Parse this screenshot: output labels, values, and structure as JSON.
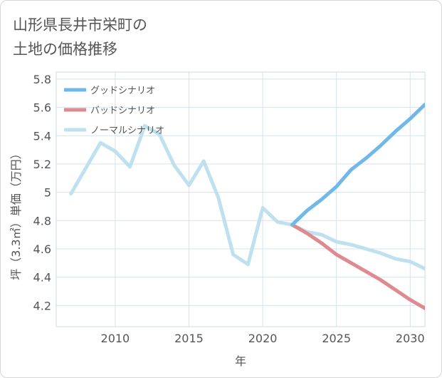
{
  "chart_data": {
    "type": "line",
    "title_lines": [
      "山形県長井市栄町の",
      "土地の価格推移"
    ],
    "xlabel": "年",
    "ylabel": "坪（3.3㎡）単価（万円）",
    "xlim": [
      2006,
      2031
    ],
    "ylim": [
      4.05,
      5.85
    ],
    "x_ticks": [
      2010,
      2015,
      2020,
      2025,
      2030
    ],
    "x_tick_labels": [
      "2010",
      "2015",
      "2020",
      "2025",
      "2030"
    ],
    "y_ticks": [
      4.2,
      4.4,
      4.6,
      4.8,
      5.0,
      5.2,
      5.4,
      5.6,
      5.8
    ],
    "y_tick_labels": [
      "4.2",
      "4.4",
      "4.6",
      "4.8",
      "5",
      "5.2",
      "5.4",
      "5.6",
      "5.8"
    ],
    "grid": true,
    "legend_position": "top-left",
    "series": [
      {
        "name": "グッドシナリオ",
        "color": "#6fb8e8",
        "x": [
          2022,
          2023,
          2024,
          2025,
          2026,
          2027,
          2028,
          2029,
          2030,
          2031
        ],
        "y": [
          4.77,
          4.87,
          4.95,
          5.04,
          5.16,
          5.24,
          5.33,
          5.43,
          5.52,
          5.62
        ]
      },
      {
        "name": "バッドシナリオ",
        "color": "#de8a90",
        "x": [
          2022,
          2023,
          2024,
          2025,
          2026,
          2027,
          2028,
          2029,
          2030,
          2031
        ],
        "y": [
          4.77,
          4.71,
          4.64,
          4.56,
          4.5,
          4.44,
          4.38,
          4.31,
          4.24,
          4.18
        ]
      },
      {
        "name": "ノーマルシナリオ",
        "color": "#bfe0ee",
        "x": [
          2007,
          2008,
          2009,
          2010,
          2011,
          2012,
          2013,
          2014,
          2015,
          2016,
          2017,
          2018,
          2019,
          2020,
          2021,
          2022,
          2023,
          2024,
          2025,
          2026,
          2027,
          2028,
          2029,
          2030,
          2031
        ],
        "y": [
          4.99,
          5.17,
          5.35,
          5.29,
          5.18,
          5.47,
          5.41,
          5.19,
          5.05,
          5.22,
          4.96,
          4.56,
          4.49,
          4.89,
          4.79,
          4.77,
          4.72,
          4.7,
          4.65,
          4.63,
          4.6,
          4.57,
          4.53,
          4.51,
          4.46
        ]
      }
    ]
  }
}
